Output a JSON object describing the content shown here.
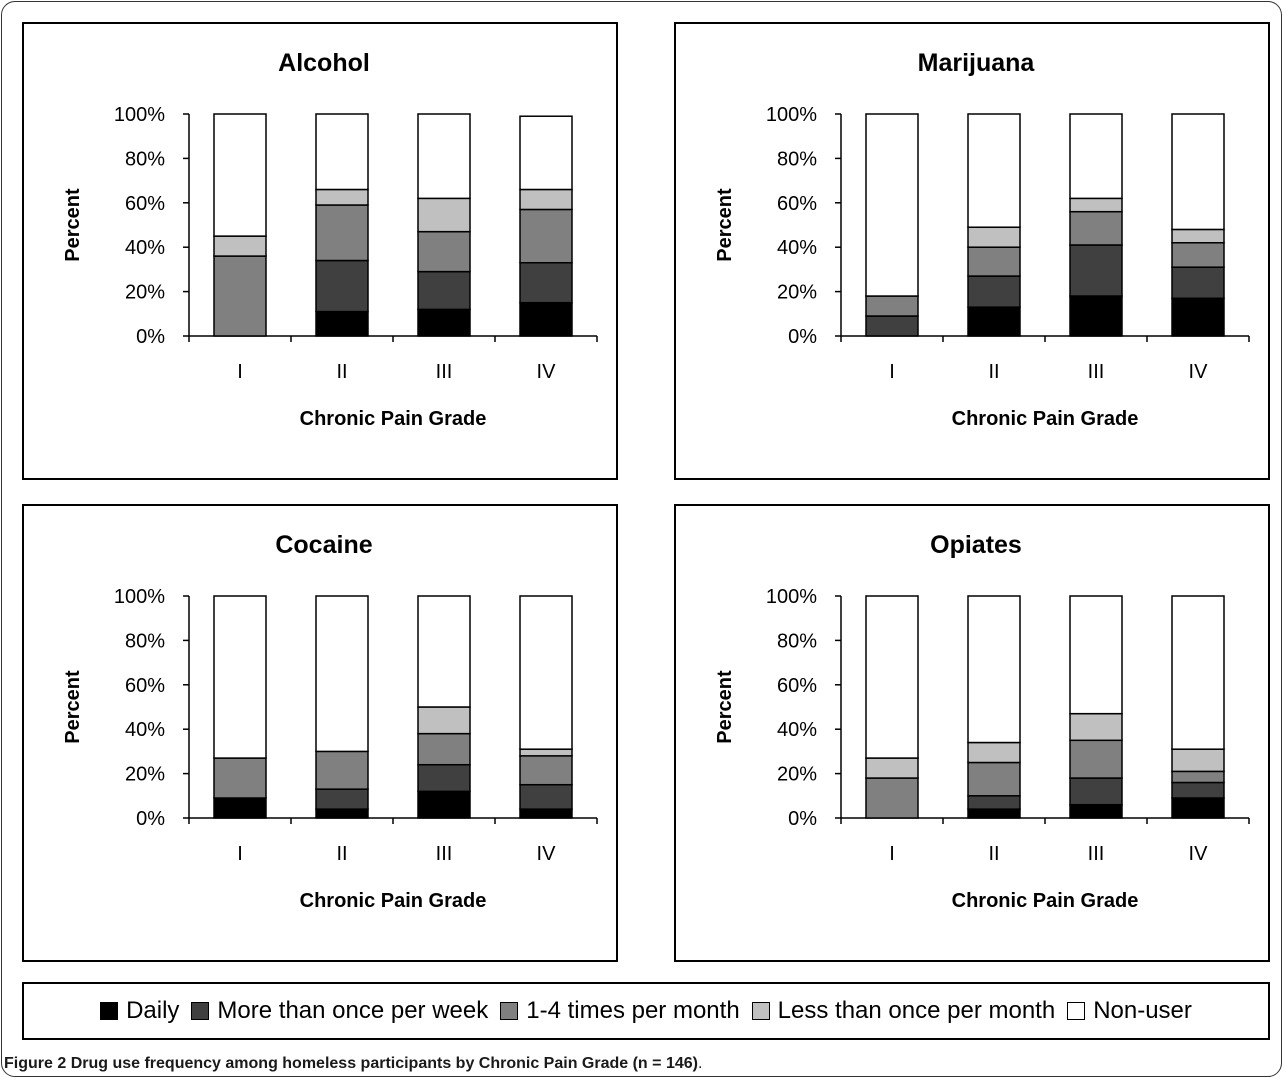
{
  "colors": {
    "Daily": "#000000",
    "More than once per week": "#404040",
    "1-4 times per month": "#808080",
    "Less than once per month": "#c0c0c0",
    "Non-user": "#ffffff"
  },
  "legend": [
    {
      "label": "Daily"
    },
    {
      "label": "More than once per week"
    },
    {
      "label": "1-4 times per month"
    },
    {
      "label": "Less than once per month"
    },
    {
      "label": "Non-user"
    }
  ],
  "caption": {
    "label": "Figure 2",
    "text": "Drug use frequency among homeless participants by Chronic Pain Grade (n = 146)",
    "suffix": "."
  },
  "chart_data": [
    {
      "type": "bar",
      "stacked": true,
      "title": "Alcohol",
      "xlabel": "Chronic Pain Grade",
      "ylabel": "Percent",
      "ylim": [
        0,
        100
      ],
      "yticks": [
        "0%",
        "20%",
        "40%",
        "60%",
        "80%",
        "100%"
      ],
      "categories": [
        "I",
        "II",
        "III",
        "IV"
      ],
      "series": [
        {
          "name": "Daily",
          "values": [
            0,
            11,
            12,
            15
          ]
        },
        {
          "name": "More than once per week",
          "values": [
            0,
            23,
            17,
            18
          ]
        },
        {
          "name": "1-4 times per month",
          "values": [
            36,
            25,
            18,
            24
          ]
        },
        {
          "name": "Less than once per month",
          "values": [
            9,
            7,
            15,
            9
          ]
        },
        {
          "name": "Non-user",
          "values": [
            55,
            34,
            38,
            33
          ]
        }
      ]
    },
    {
      "type": "bar",
      "stacked": true,
      "title": "Marijuana",
      "xlabel": "Chronic Pain Grade",
      "ylabel": "Percent",
      "ylim": [
        0,
        100
      ],
      "yticks": [
        "0%",
        "20%",
        "40%",
        "60%",
        "80%",
        "100%"
      ],
      "categories": [
        "I",
        "II",
        "III",
        "IV"
      ],
      "series": [
        {
          "name": "Daily",
          "values": [
            0,
            13,
            18,
            17
          ]
        },
        {
          "name": "More than once per week",
          "values": [
            9,
            14,
            23,
            14
          ]
        },
        {
          "name": "1-4 times per month",
          "values": [
            9,
            13,
            15,
            11
          ]
        },
        {
          "name": "Less than once per month",
          "values": [
            0,
            9,
            6,
            6
          ]
        },
        {
          "name": "Non-user",
          "values": [
            82,
            51,
            38,
            52
          ]
        }
      ]
    },
    {
      "type": "bar",
      "stacked": true,
      "title": "Cocaine",
      "xlabel": "Chronic Pain Grade",
      "ylabel": "Percent",
      "ylim": [
        0,
        100
      ],
      "yticks": [
        "0%",
        "20%",
        "40%",
        "60%",
        "80%",
        "100%"
      ],
      "categories": [
        "I",
        "II",
        "III",
        "IV"
      ],
      "series": [
        {
          "name": "Daily",
          "values": [
            9,
            4,
            12,
            4
          ]
        },
        {
          "name": "More than once per week",
          "values": [
            0,
            9,
            12,
            11
          ]
        },
        {
          "name": "1-4 times per month",
          "values": [
            18,
            17,
            14,
            13
          ]
        },
        {
          "name": "Less than once per month",
          "values": [
            0,
            0,
            12,
            3
          ]
        },
        {
          "name": "Non-user",
          "values": [
            73,
            70,
            50,
            69
          ]
        }
      ]
    },
    {
      "type": "bar",
      "stacked": true,
      "title": "Opiates",
      "xlabel": "Chronic Pain Grade",
      "ylabel": "Percent",
      "ylim": [
        0,
        100
      ],
      "yticks": [
        "0%",
        "20%",
        "40%",
        "60%",
        "80%",
        "100%"
      ],
      "categories": [
        "I",
        "II",
        "III",
        "IV"
      ],
      "series": [
        {
          "name": "Daily",
          "values": [
            0,
            4,
            6,
            9
          ]
        },
        {
          "name": "More than once per week",
          "values": [
            0,
            6,
            12,
            7
          ]
        },
        {
          "name": "1-4 times per month",
          "values": [
            18,
            15,
            17,
            5
          ]
        },
        {
          "name": "Less than once per month",
          "values": [
            9,
            9,
            12,
            10
          ]
        },
        {
          "name": "Non-user",
          "values": [
            73,
            66,
            53,
            69
          ]
        }
      ]
    }
  ]
}
